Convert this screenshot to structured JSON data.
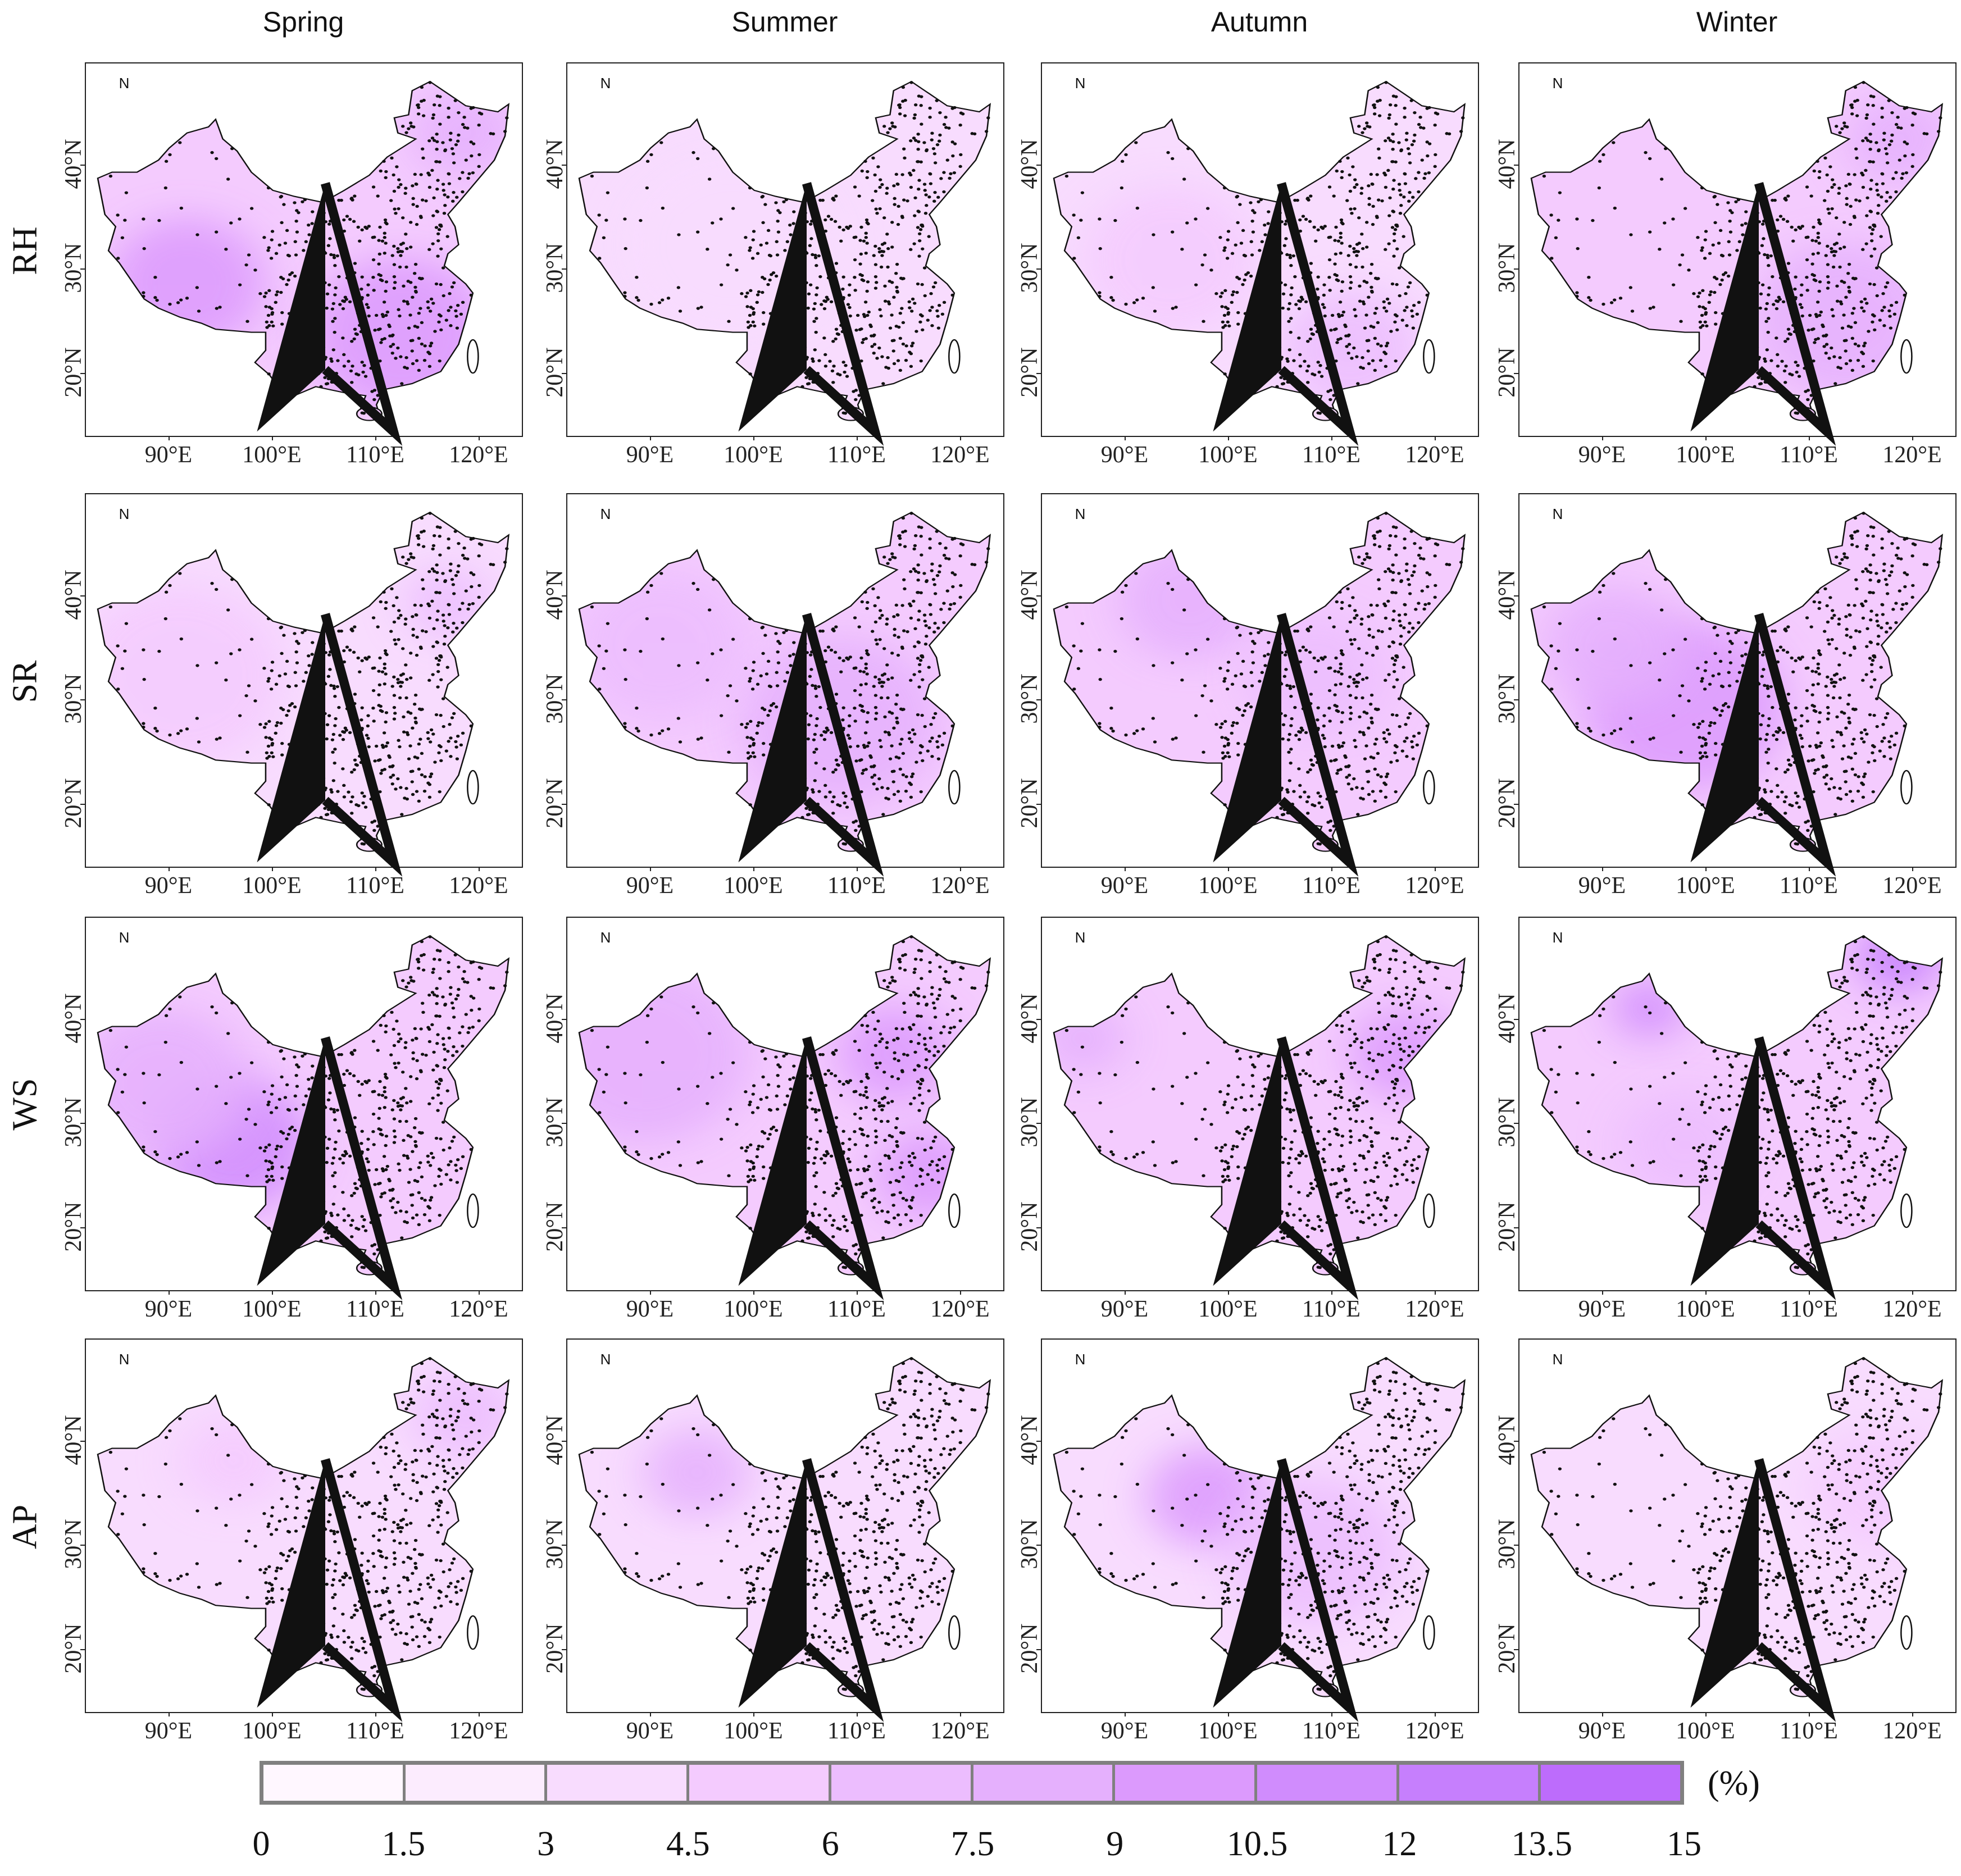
{
  "columns": [
    "Spring",
    "Summer",
    "Autumn",
    "Winter"
  ],
  "rows": [
    "RH",
    "SR",
    "WS",
    "AP"
  ],
  "lon_ticks": [
    "90°E",
    "100°E",
    "110°E",
    "120°E"
  ],
  "lat_ticks": [
    "40°N",
    "30°N",
    "20°N"
  ],
  "north_arrow_label": "N",
  "legend": {
    "unit": "(%)",
    "ticks": [
      "0",
      "1.5",
      "3",
      "4.5",
      "6",
      "7.5",
      "9",
      "10.5",
      "12",
      "13.5",
      "15"
    ],
    "colors": [
      "#fff7ff",
      "#fcecfe",
      "#f8dcfe",
      "#f4cbfe",
      "#ecbdfe",
      "#e5b0fd",
      "#dc9afd",
      "#d08cfd",
      "#c67ffd",
      "#bd6cfc"
    ]
  },
  "chart_data": {
    "type": "heatmap",
    "rows": [
      "RH",
      "SR",
      "WS",
      "AP"
    ],
    "columns": [
      "Spring",
      "Summer",
      "Autumn",
      "Winter"
    ],
    "typical_level_percent": [
      [
        5,
        3,
        3.5,
        4.5
      ],
      [
        4,
        5,
        4.5,
        5
      ],
      [
        5,
        5,
        4.5,
        4.5
      ],
      [
        3,
        4,
        3.5,
        3
      ]
    ],
    "color_range": [
      0,
      15
    ]
  }
}
